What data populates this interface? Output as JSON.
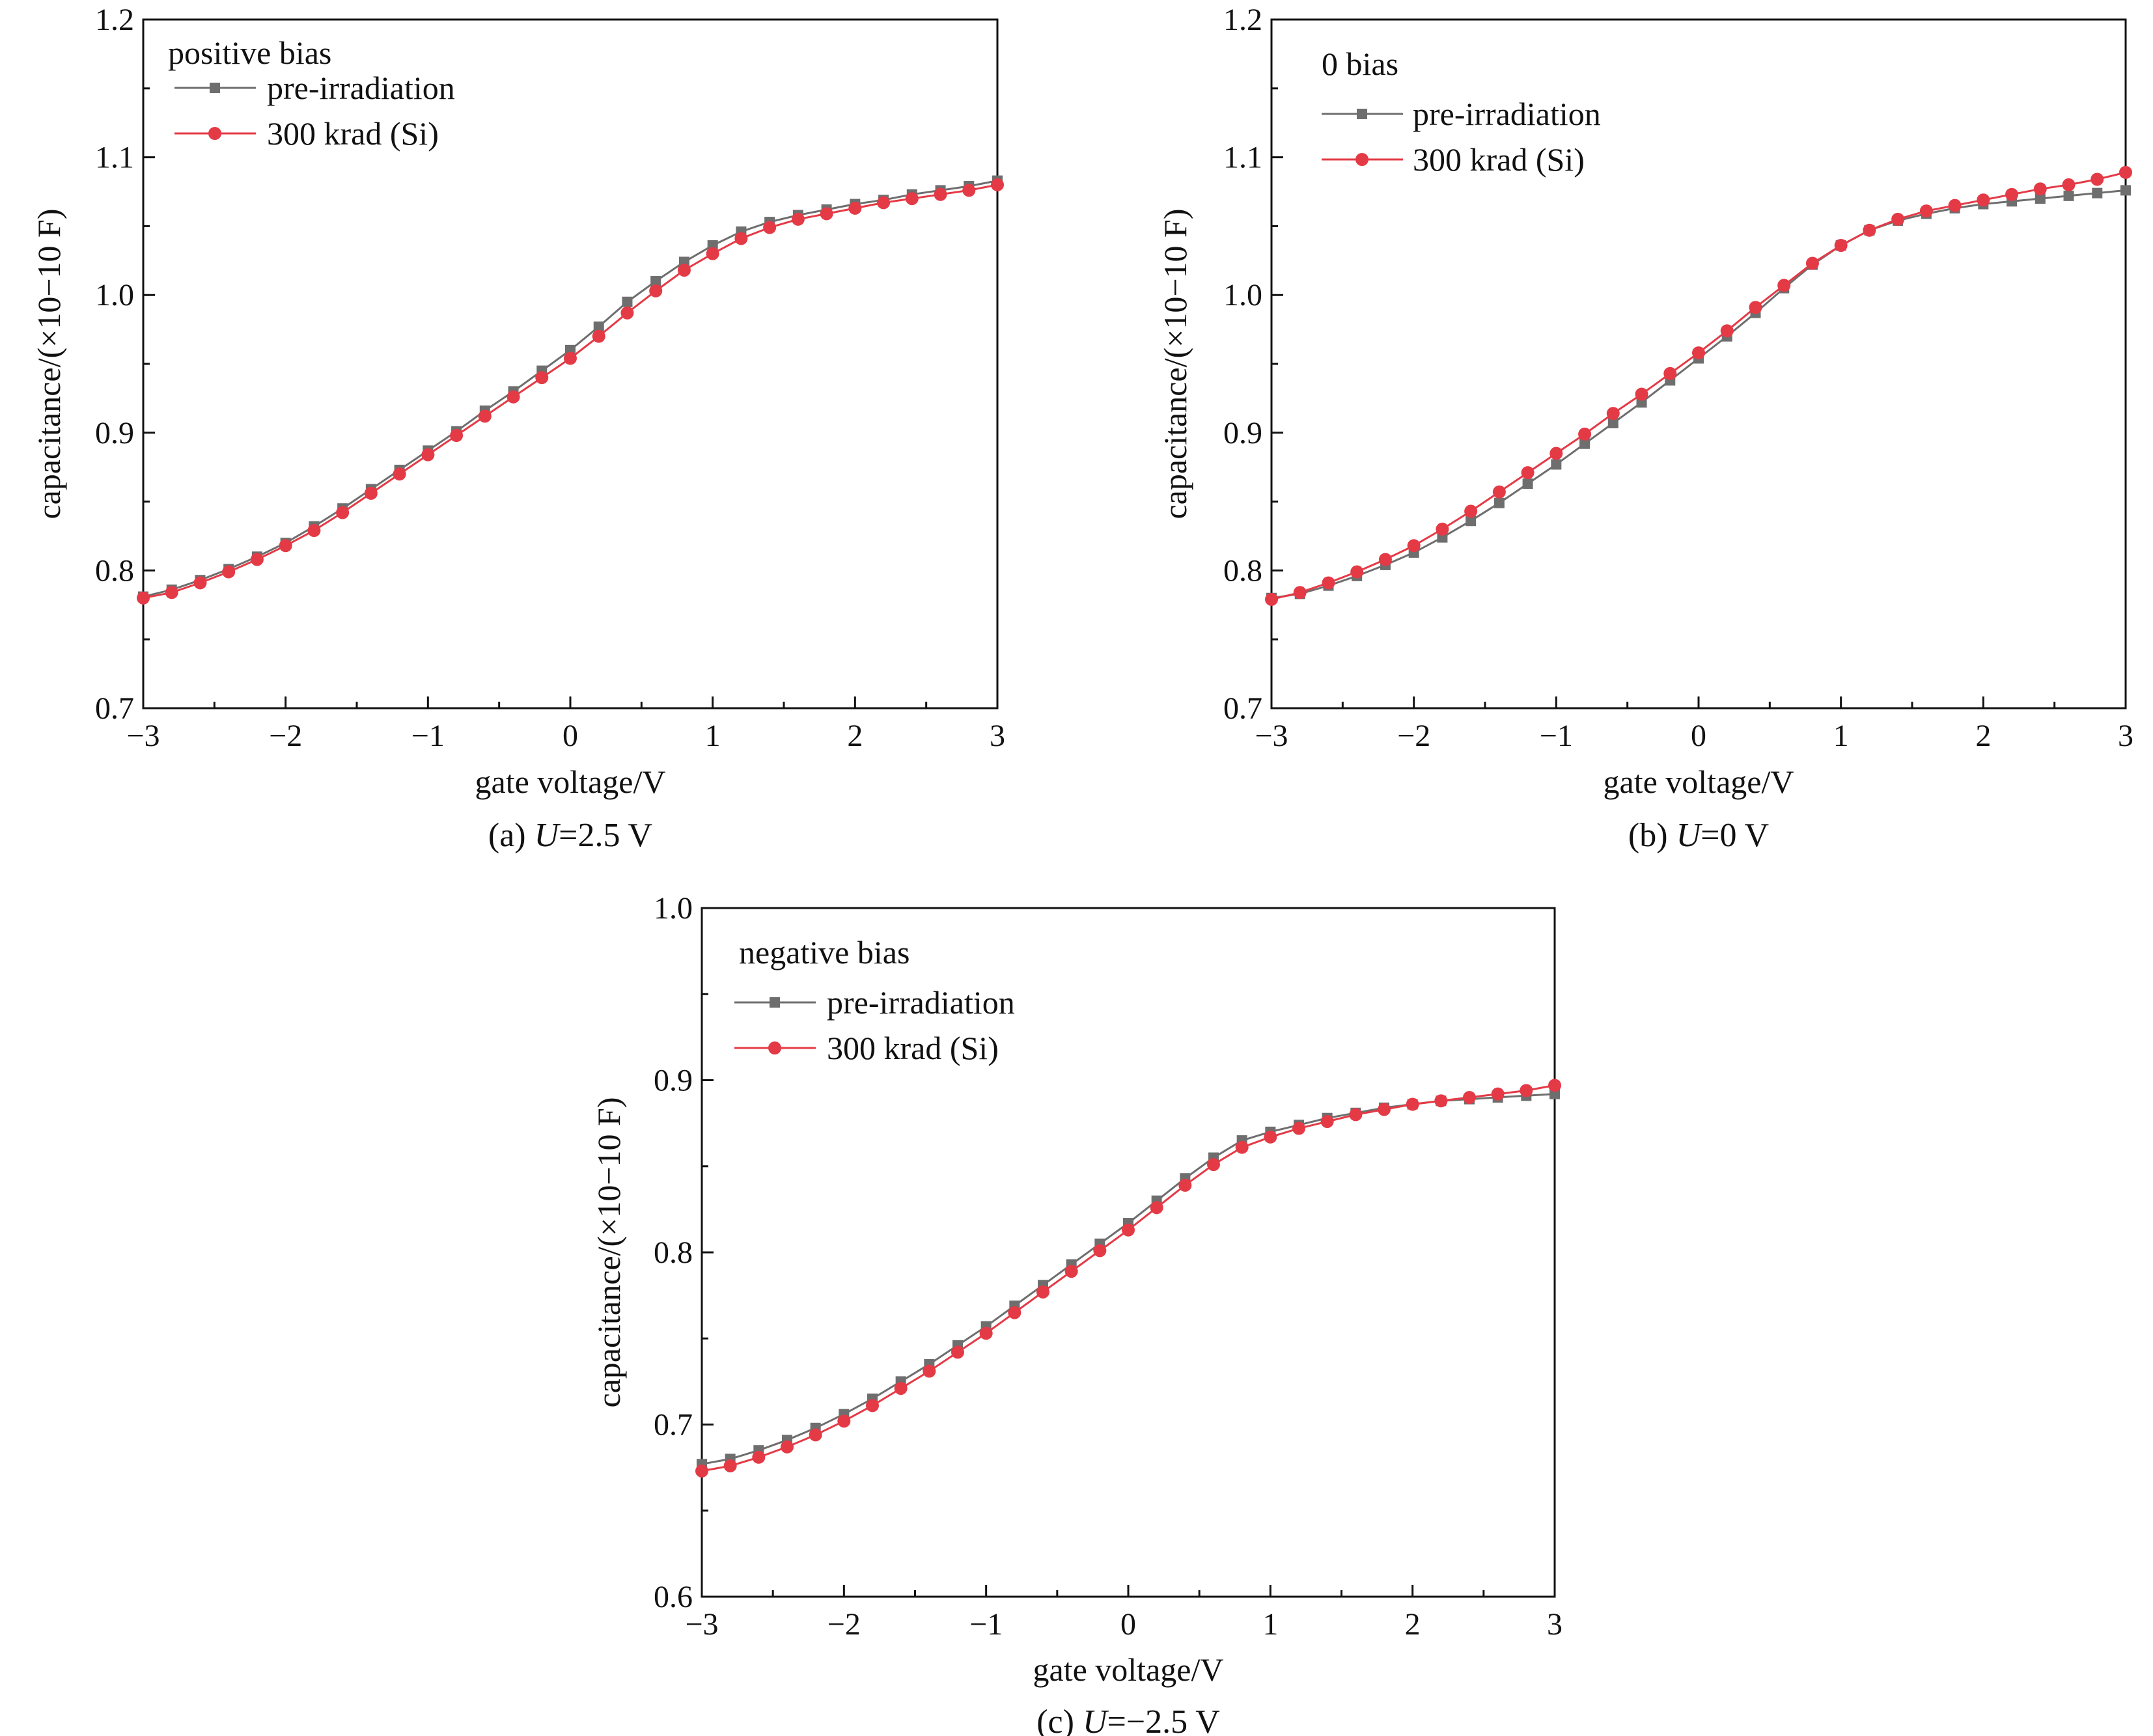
{
  "figure": {
    "colors": {
      "pre": "#6e6e6e",
      "post": "#e43a46"
    },
    "markers": {
      "pre": "square",
      "post": "circle"
    }
  },
  "chart_data": [
    {
      "id": "a",
      "type": "line",
      "caption": "(a) U=2.5 V",
      "caption_parts": [
        "(a) ",
        "U",
        "=2.5 V"
      ],
      "xlabel": "gate voltage/V",
      "ylabel": "capacitance/(×10−10 F)",
      "xlim": [
        -3,
        3
      ],
      "ylim": [
        0.7,
        1.2
      ],
      "xticks": [
        -3,
        -2,
        -1,
        0,
        1,
        2,
        3
      ],
      "xtick_labels": [
        "−3",
        "−2",
        "−1",
        "0",
        "1",
        "2",
        "3"
      ],
      "yticks": [
        0.7,
        0.8,
        0.9,
        1.0,
        1.1,
        1.2
      ],
      "ytick_labels": [
        "0.7",
        "0.8",
        "0.9",
        "1.0",
        "1.1",
        "1.2"
      ],
      "legend_title": "positive bias",
      "legend_position": "top-left",
      "grid": false,
      "x": [
        -3.0,
        -2.8,
        -2.6,
        -2.4,
        -2.2,
        -2.0,
        -1.8,
        -1.6,
        -1.4,
        -1.2,
        -1.0,
        -0.8,
        -0.6,
        -0.4,
        -0.2,
        0.0,
        0.2,
        0.4,
        0.6,
        0.8,
        1.0,
        1.2,
        1.4,
        1.6,
        1.8,
        2.0,
        2.2,
        2.4,
        2.6,
        2.8,
        3.0
      ],
      "series": [
        {
          "name": "pre-irradiation",
          "marker": "square",
          "values": [
            0.781,
            0.786,
            0.793,
            0.801,
            0.81,
            0.82,
            0.832,
            0.845,
            0.859,
            0.873,
            0.887,
            0.901,
            0.916,
            0.93,
            0.945,
            0.96,
            0.977,
            0.995,
            1.01,
            1.024,
            1.036,
            1.046,
            1.053,
            1.058,
            1.062,
            1.066,
            1.069,
            1.073,
            1.076,
            1.079,
            1.083
          ]
        },
        {
          "name": "300 krad (Si)",
          "marker": "circle",
          "values": [
            0.78,
            0.784,
            0.791,
            0.799,
            0.808,
            0.818,
            0.829,
            0.842,
            0.856,
            0.87,
            0.884,
            0.898,
            0.912,
            0.926,
            0.94,
            0.954,
            0.97,
            0.987,
            1.003,
            1.018,
            1.03,
            1.041,
            1.049,
            1.055,
            1.059,
            1.063,
            1.067,
            1.07,
            1.073,
            1.076,
            1.08
          ]
        }
      ]
    },
    {
      "id": "b",
      "type": "line",
      "caption": "(b) U=0 V",
      "caption_parts": [
        "(b) ",
        "U",
        "=0 V"
      ],
      "xlabel": "gate voltage/V",
      "ylabel": "capacitance/(×10−10 F)",
      "xlim": [
        -3,
        3
      ],
      "ylim": [
        0.7,
        1.2
      ],
      "xticks": [
        -3,
        -2,
        -1,
        0,
        1,
        2,
        3
      ],
      "xtick_labels": [
        "−3",
        "−2",
        "−1",
        "0",
        "1",
        "2",
        "3"
      ],
      "yticks": [
        0.7,
        0.8,
        0.9,
        1.0,
        1.1,
        1.2
      ],
      "ytick_labels": [
        "0.7",
        "0.8",
        "0.9",
        "1.0",
        "1.1",
        "1.2"
      ],
      "legend_title": "0 bias",
      "legend_position": "top-left",
      "grid": false,
      "x": [
        -3.0,
        -2.8,
        -2.6,
        -2.4,
        -2.2,
        -2.0,
        -1.8,
        -1.6,
        -1.4,
        -1.2,
        -1.0,
        -0.8,
        -0.6,
        -0.4,
        -0.2,
        0.0,
        0.2,
        0.4,
        0.6,
        0.8,
        1.0,
        1.2,
        1.4,
        1.6,
        1.8,
        2.0,
        2.2,
        2.4,
        2.6,
        2.8,
        3.0
      ],
      "series": [
        {
          "name": "pre-irradiation",
          "marker": "square",
          "values": [
            0.78,
            0.783,
            0.789,
            0.796,
            0.804,
            0.813,
            0.824,
            0.836,
            0.849,
            0.863,
            0.877,
            0.892,
            0.907,
            0.922,
            0.938,
            0.954,
            0.97,
            0.987,
            1.005,
            1.022,
            1.036,
            1.047,
            1.054,
            1.059,
            1.063,
            1.066,
            1.068,
            1.07,
            1.072,
            1.074,
            1.076
          ]
        },
        {
          "name": "300 krad (Si)",
          "marker": "circle",
          "values": [
            0.779,
            0.784,
            0.791,
            0.799,
            0.808,
            0.818,
            0.83,
            0.843,
            0.857,
            0.871,
            0.885,
            0.899,
            0.914,
            0.928,
            0.943,
            0.958,
            0.974,
            0.991,
            1.007,
            1.023,
            1.036,
            1.047,
            1.055,
            1.061,
            1.065,
            1.069,
            1.073,
            1.077,
            1.08,
            1.084,
            1.089
          ]
        }
      ]
    },
    {
      "id": "c",
      "type": "line",
      "caption": "(c) U=−2.5 V",
      "caption_parts": [
        "(c) ",
        "U",
        "=−2.5 V"
      ],
      "xlabel": "gate voltage/V",
      "ylabel": "capacitance/(×10−10 F)",
      "xlim": [
        -3,
        3
      ],
      "ylim": [
        0.6,
        1.0
      ],
      "xticks": [
        -3,
        -2,
        -1,
        0,
        1,
        2,
        3
      ],
      "xtick_labels": [
        "−3",
        "−2",
        "−1",
        "0",
        "1",
        "2",
        "3"
      ],
      "yticks": [
        0.6,
        0.7,
        0.8,
        0.9,
        1.0
      ],
      "ytick_labels": [
        "0.6",
        "0.7",
        "0.8",
        "0.9",
        "1.0"
      ],
      "legend_title": "negative bias",
      "legend_position": "top-left",
      "grid": false,
      "x": [
        -3.0,
        -2.8,
        -2.6,
        -2.4,
        -2.2,
        -2.0,
        -1.8,
        -1.6,
        -1.4,
        -1.2,
        -1.0,
        -0.8,
        -0.6,
        -0.4,
        -0.2,
        0.0,
        0.2,
        0.4,
        0.6,
        0.8,
        1.0,
        1.2,
        1.4,
        1.6,
        1.8,
        2.0,
        2.2,
        2.4,
        2.6,
        2.8,
        3.0
      ],
      "series": [
        {
          "name": "pre-irradiation",
          "marker": "square",
          "values": [
            0.677,
            0.68,
            0.685,
            0.691,
            0.698,
            0.706,
            0.715,
            0.725,
            0.735,
            0.746,
            0.757,
            0.769,
            0.781,
            0.793,
            0.805,
            0.817,
            0.83,
            0.843,
            0.855,
            0.865,
            0.87,
            0.874,
            0.878,
            0.881,
            0.884,
            0.886,
            0.888,
            0.889,
            0.89,
            0.891,
            0.892
          ]
        },
        {
          "name": "300 krad (Si)",
          "marker": "circle",
          "values": [
            0.673,
            0.676,
            0.681,
            0.687,
            0.694,
            0.702,
            0.711,
            0.721,
            0.731,
            0.742,
            0.753,
            0.765,
            0.777,
            0.789,
            0.801,
            0.813,
            0.826,
            0.839,
            0.851,
            0.861,
            0.867,
            0.872,
            0.876,
            0.88,
            0.883,
            0.886,
            0.888,
            0.89,
            0.892,
            0.894,
            0.897
          ]
        }
      ]
    }
  ]
}
